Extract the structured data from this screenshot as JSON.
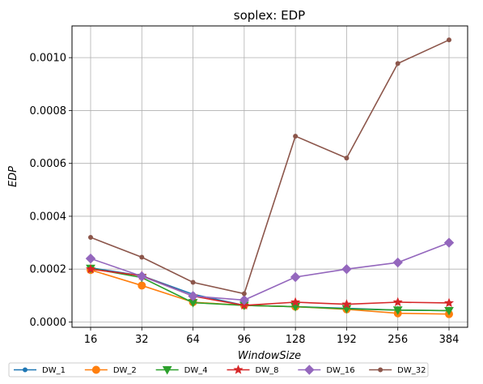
{
  "chart_data": {
    "type": "line",
    "title": "soplex: EDP",
    "xlabel": "WindowSize",
    "ylabel": "EDP",
    "categories": [
      "16",
      "32",
      "64",
      "96",
      "128",
      "192",
      "256",
      "384"
    ],
    "ylim": [
      -2e-05,
      0.00112
    ],
    "yticks": [
      0.0,
      0.0002,
      0.0004,
      0.0006,
      0.0008,
      0.001
    ],
    "ytick_labels": [
      "0.0000",
      "0.0002",
      "0.0004",
      "0.0006",
      "0.0008",
      "0.0010"
    ],
    "grid": true,
    "legend_position": "bottom, below plot",
    "series": [
      {
        "name": "DW_1",
        "color": "#1f77b4",
        "marker": "point",
        "values": [
          0.000205,
          0.000175,
          0.000105,
          6.3e-05,
          5.8e-05,
          5.2e-05,
          4.5e-05,
          4.3e-05
        ]
      },
      {
        "name": "DW_2",
        "color": "#ff7f0e",
        "marker": "circle",
        "values": [
          0.000197,
          0.000138,
          7.5e-05,
          6.3e-05,
          5.8e-05,
          4.8e-05,
          3.3e-05,
          3e-05
        ]
      },
      {
        "name": "DW_4",
        "color": "#2ca02c",
        "marker": "triangle-down",
        "values": [
          0.000203,
          0.000168,
          7.3e-05,
          6.3e-05,
          5.8e-05,
          5e-05,
          4.5e-05,
          4.3e-05
        ]
      },
      {
        "name": "DW_8",
        "color": "#d62728",
        "marker": "star",
        "values": [
          0.0002,
          0.000175,
          9.8e-05,
          6.3e-05,
          7.5e-05,
          6.7e-05,
          7.5e-05,
          7.2e-05
        ]
      },
      {
        "name": "DW_16",
        "color": "#9467bd",
        "marker": "diamond",
        "values": [
          0.00024,
          0.000173,
          9.8e-05,
          8.3e-05,
          0.00017,
          0.0002,
          0.000225,
          0.0003
        ]
      },
      {
        "name": "DW_32",
        "color": "#8c564b",
        "marker": "point",
        "values": [
          0.00032,
          0.000245,
          0.00015,
          0.000107,
          0.000703,
          0.00062,
          0.000978,
          0.001067
        ]
      }
    ]
  }
}
